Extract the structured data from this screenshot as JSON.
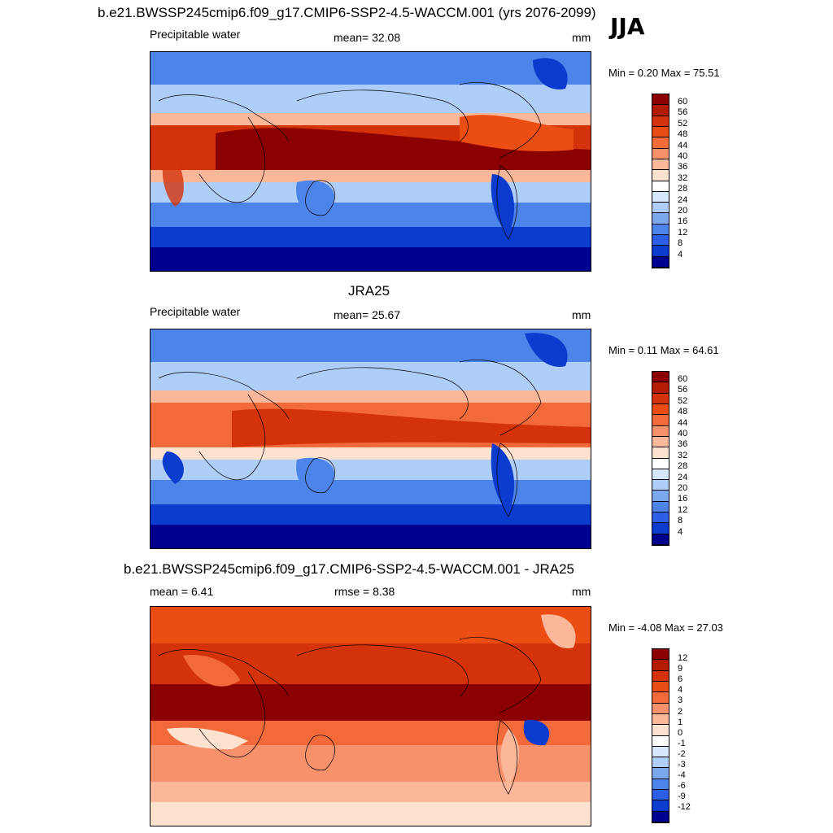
{
  "header": {
    "title": "b.e21.BWSSP245cmip6.f09_g17.CMIP6-SSP2-4.5-WACCM.001 (yrs 2076-2099)",
    "season": "JJA"
  },
  "panels": [
    {
      "id": "model",
      "variable": "Precipitable water",
      "stat1": "mean=  32.08",
      "units": "mm",
      "minmax": "Min =   0.20 Max =  75.51",
      "colorbar": {
        "labels": [
          "60",
          "56",
          "52",
          "48",
          "44",
          "40",
          "36",
          "32",
          "28",
          "24",
          "20",
          "16",
          "12",
          "8",
          "4"
        ],
        "colors": [
          "#8b0000",
          "#b31b00",
          "#d4330a",
          "#ec4d12",
          "#f26a3a",
          "#f7916b",
          "#fab79a",
          "#fde3cf",
          "#ffffff",
          "#d6e6fb",
          "#aecdf7",
          "#7ba9ef",
          "#4d84ea",
          "#2a5fe6",
          "#0c3ccd",
          "#00008f"
        ]
      }
    },
    {
      "id": "obs",
      "title": "JRA25",
      "variable": "Precipitable water",
      "stat1": "mean=  25.67",
      "units": "mm",
      "minmax": "Min =   0.11 Max =  64.61",
      "colorbar": {
        "labels": [
          "60",
          "56",
          "52",
          "48",
          "44",
          "40",
          "36",
          "32",
          "28",
          "24",
          "20",
          "16",
          "12",
          "8",
          "4"
        ],
        "colors": [
          "#8b0000",
          "#b31b00",
          "#d4330a",
          "#ec4d12",
          "#f26a3a",
          "#f7916b",
          "#fab79a",
          "#fde3cf",
          "#ffffff",
          "#d6e6fb",
          "#aecdf7",
          "#7ba9ef",
          "#4d84ea",
          "#2a5fe6",
          "#0c3ccd",
          "#00008f"
        ]
      }
    },
    {
      "id": "diff",
      "title": "b.e21.BWSSP245cmip6.f09_g17.CMIP6-SSP2-4.5-WACCM.001 - JRA25",
      "stat1": "mean =    6.41",
      "stat2": "rmse =    8.38",
      "units": "mm",
      "minmax": "Min =  -4.08 Max =  27.03",
      "colorbar": {
        "labels": [
          "12",
          "9",
          "6",
          "4",
          "3",
          "2",
          "1",
          "0",
          "-1",
          "-2",
          "-3",
          "-4",
          "-6",
          "-9",
          "-12"
        ],
        "colors": [
          "#8b0000",
          "#b31b00",
          "#d4330a",
          "#ec4d12",
          "#f26a3a",
          "#f7916b",
          "#fab79a",
          "#fde3cf",
          "#ffffff",
          "#d6e6fb",
          "#aecdf7",
          "#7ba9ef",
          "#4d84ea",
          "#2a5fe6",
          "#0c3ccd",
          "#00008f"
        ]
      }
    }
  ]
}
